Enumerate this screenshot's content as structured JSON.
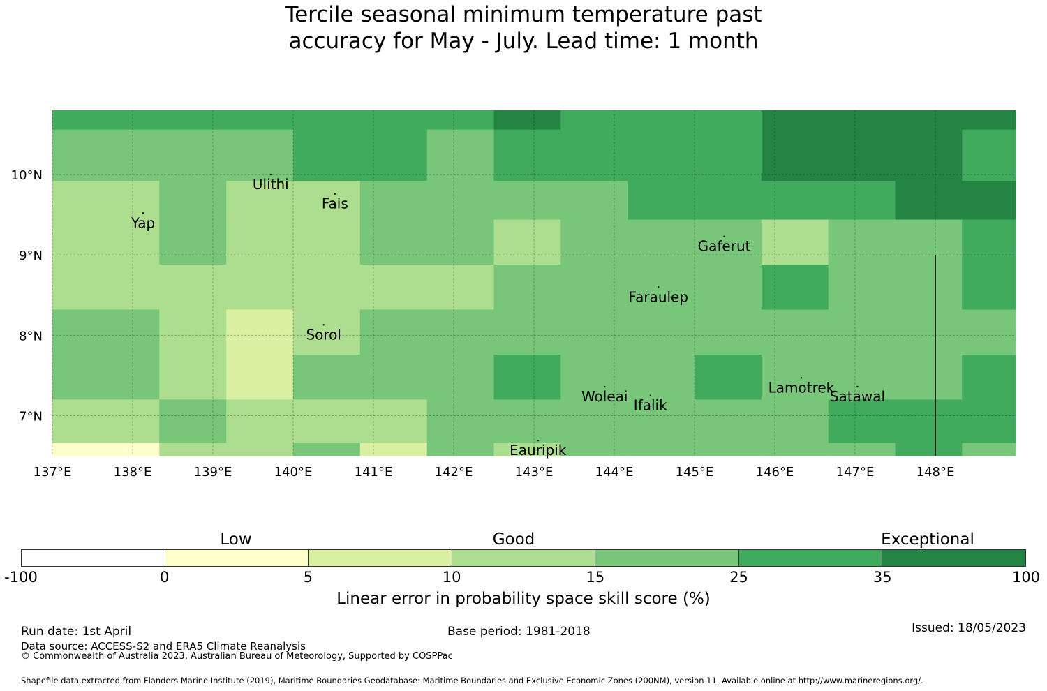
{
  "title": {
    "line1": "Tercile seasonal minimum temperature past",
    "line2": "accuracy for May - July. Lead time: 1 month"
  },
  "map": {
    "lon_range": [
      137.0,
      149.0
    ],
    "lat_range": [
      6.5,
      10.8
    ],
    "lon_ticks": [
      137,
      138,
      139,
      140,
      141,
      142,
      143,
      144,
      145,
      146,
      147,
      148
    ],
    "lon_tick_labels": [
      "137°E",
      "138°E",
      "139°E",
      "140°E",
      "141°E",
      "142°E",
      "143°E",
      "144°E",
      "145°E",
      "146°E",
      "147°E",
      "148°E"
    ],
    "lat_ticks": [
      10,
      9,
      8,
      7
    ],
    "lat_tick_labels": [
      "10°N",
      "9°N",
      "8°N",
      "7°N"
    ],
    "grid": true,
    "col_edges": [
      137.0,
      137.5,
      138.333,
      139.167,
      140.0,
      140.833,
      141.667,
      142.5,
      143.333,
      144.167,
      145.0,
      145.833,
      146.667,
      147.5,
      148.333,
      149.0
    ],
    "row_edges": [
      10.8,
      10.56,
      9.92,
      9.44,
      8.88,
      8.32,
      7.76,
      7.2,
      6.66,
      6.5
    ],
    "class_colors": [
      "#ffffff",
      "#ffffcc",
      "#d9f0a3",
      "#addd8e",
      "#78c679",
      "#41ab5d",
      "#238443"
    ],
    "cells": [
      [
        5,
        5,
        5,
        5,
        5,
        5,
        5,
        6,
        5,
        5,
        5,
        6,
        6,
        6,
        6
      ],
      [
        4,
        4,
        4,
        4,
        5,
        5,
        4,
        5,
        5,
        5,
        5,
        6,
        6,
        6,
        5
      ],
      [
        3,
        3,
        4,
        3,
        3,
        4,
        4,
        4,
        4,
        5,
        5,
        5,
        5,
        6,
        6
      ],
      [
        3,
        3,
        4,
        3,
        3,
        4,
        4,
        3,
        4,
        4,
        4,
        3,
        4,
        4,
        5
      ],
      [
        3,
        3,
        3,
        3,
        3,
        3,
        3,
        4,
        4,
        4,
        4,
        5,
        4,
        4,
        5
      ],
      [
        4,
        4,
        3,
        2,
        3,
        4,
        4,
        4,
        4,
        4,
        4,
        4,
        4,
        4,
        4
      ],
      [
        4,
        4,
        3,
        2,
        4,
        4,
        4,
        5,
        4,
        4,
        5,
        4,
        4,
        4,
        5
      ],
      [
        3,
        3,
        4,
        3,
        3,
        3,
        4,
        4,
        4,
        4,
        4,
        4,
        5,
        5,
        5
      ],
      [
        1,
        1,
        3,
        3,
        4,
        2,
        4,
        3,
        4,
        4,
        4,
        4,
        4,
        5,
        4
      ]
    ],
    "islands": [
      {
        "name": "Ulithi",
        "lon": 139.72,
        "lat": 10.0
      },
      {
        "name": "Fais",
        "lon": 140.52,
        "lat": 9.76
      },
      {
        "name": "Yap",
        "lon": 138.13,
        "lat": 9.52
      },
      {
        "name": "Gaferut",
        "lon": 145.37,
        "lat": 9.23
      },
      {
        "name": "Faraulep",
        "lon": 144.55,
        "lat": 8.6
      },
      {
        "name": "Sorol",
        "lon": 140.38,
        "lat": 8.13
      },
      {
        "name": "Woleai",
        "lon": 143.88,
        "lat": 7.36
      },
      {
        "name": "Ifalik",
        "lon": 144.45,
        "lat": 7.25
      },
      {
        "name": "Lamotrek",
        "lon": 146.33,
        "lat": 7.47
      },
      {
        "name": "Satawal",
        "lon": 147.03,
        "lat": 7.36
      },
      {
        "name": "Eauripik",
        "lon": 143.05,
        "lat": 6.69
      }
    ],
    "boundary_line": {
      "lon": 148.0,
      "lat_from": 6.5,
      "lat_to": 9.0
    }
  },
  "legend": {
    "headings": [
      "Low",
      "Good",
      "Exceptional"
    ],
    "tick_labels": [
      "-100",
      "0",
      "5",
      "10",
      "15",
      "25",
      "35",
      "100"
    ],
    "colors": [
      "#ffffff",
      "#ffffcc",
      "#d9f0a3",
      "#addd8e",
      "#78c679",
      "#41ab5d",
      "#238443"
    ],
    "title": "Linear error in probability space skill score (%)"
  },
  "footer": {
    "run_date": "Run date: 1st April",
    "base_period": "Base period: 1981-2018",
    "issued": "Issued: 18/05/2023",
    "data_source": "Data source: ACCESS-S2 and ERA5 Climate Reanalysis",
    "copyright": "© Commonwealth of Australia 2023, Australian Bureau of Meteorology, Supported by COSPPac",
    "shapefile": "Shapefile data extracted from Flanders Marine Institute (2019), Maritime Boundaries Geodatabase: Maritime Boundaries and Exclusive Economic Zones (200NM), version 11. Available online at http://www.marineregions.org/."
  }
}
